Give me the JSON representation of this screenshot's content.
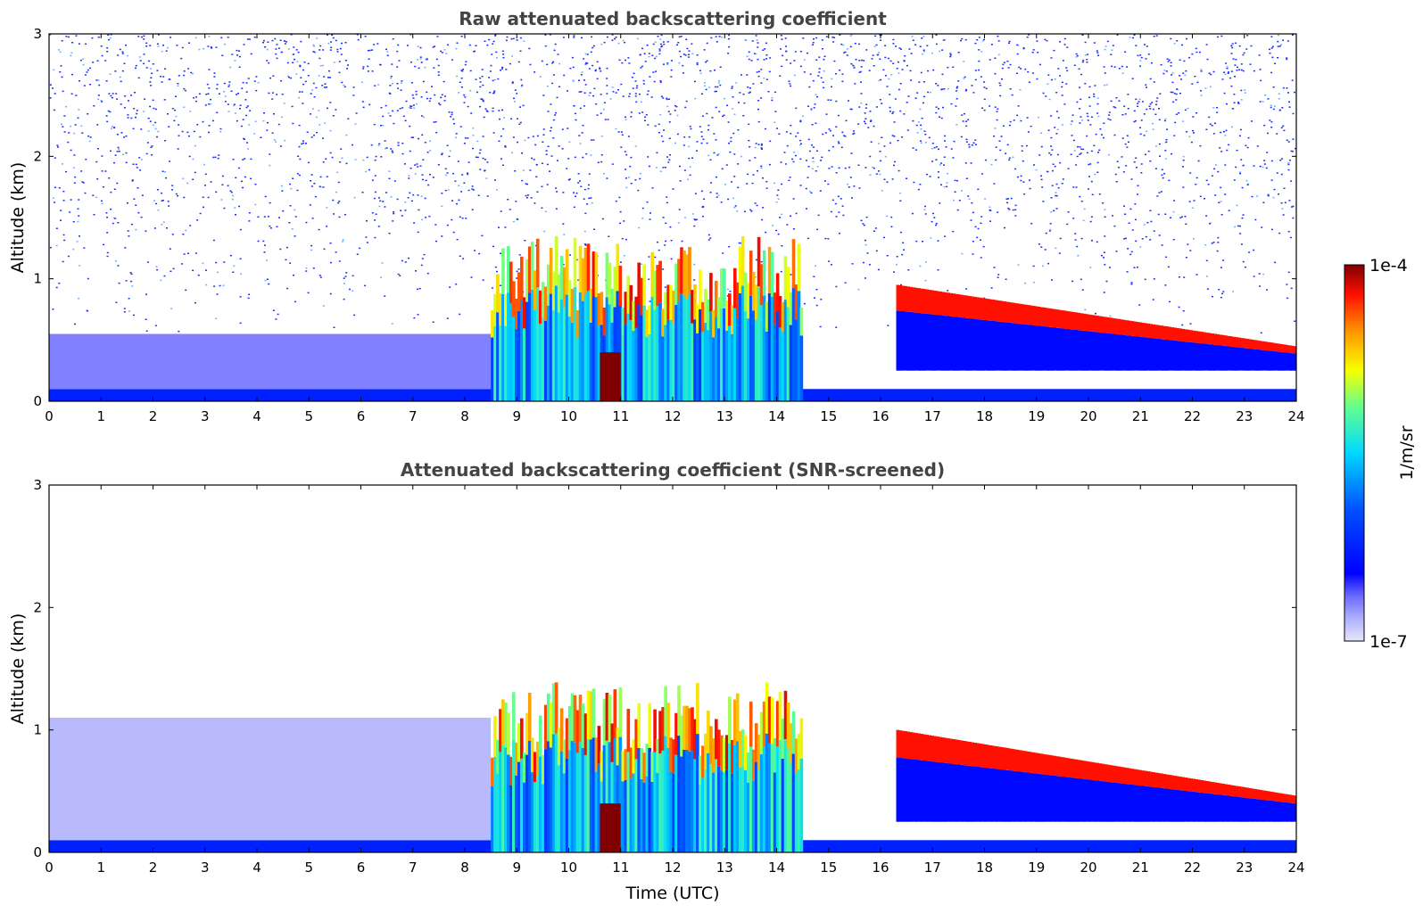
{
  "chart_data": [
    {
      "type": "heatmap",
      "title": "Raw attenuated backscattering coefficient",
      "xlabel": "",
      "ylabel": "Altitude (km)",
      "xlim": [
        0,
        24
      ],
      "ylim": [
        0,
        3
      ],
      "x_ticks": [
        "0",
        "1",
        "2",
        "3",
        "4",
        "5",
        "6",
        "7",
        "8",
        "9",
        "10",
        "11",
        "12",
        "13",
        "14",
        "15",
        "16",
        "17",
        "18",
        "19",
        "20",
        "21",
        "22",
        "23",
        "24"
      ],
      "y_ticks": [
        "0",
        "1",
        "2",
        "3"
      ],
      "features": [
        {
          "label": "noise",
          "x_range": [
            0,
            24
          ],
          "alt_range": [
            1.0,
            3.0
          ],
          "level": 0.2
        },
        {
          "label": "surface layer",
          "x_range": [
            0,
            24
          ],
          "alt_range": [
            0.0,
            0.1
          ],
          "level": 0.25
        },
        {
          "label": "boundary layer",
          "x_range": [
            0,
            8.5
          ],
          "alt_range": [
            0.1,
            0.55
          ],
          "level": 0.1
        },
        {
          "label": "convective cloud",
          "x_range": [
            8.5,
            14.5
          ],
          "alt_range": [
            0.0,
            1.35
          ],
          "level": 0.6
        },
        {
          "label": "dense core",
          "x_range": [
            10.6,
            11.0
          ],
          "alt_range": [
            0.0,
            0.4
          ],
          "level": 1.0
        },
        {
          "label": "stratiform layer",
          "x_range": [
            16.3,
            24
          ],
          "alt_range": [
            0.25,
            0.95
          ],
          "level": 0.9
        }
      ]
    },
    {
      "type": "heatmap",
      "title": "Attenuated backscattering coefficient (SNR-screened)",
      "xlabel": "Time (UTC)",
      "ylabel": "Altitude (km)",
      "xlim": [
        0,
        24
      ],
      "ylim": [
        0,
        3
      ],
      "x_ticks": [
        "0",
        "1",
        "2",
        "3",
        "4",
        "5",
        "6",
        "7",
        "8",
        "9",
        "10",
        "11",
        "12",
        "13",
        "14",
        "15",
        "16",
        "17",
        "18",
        "19",
        "20",
        "21",
        "22",
        "23",
        "24"
      ],
      "y_ticks": [
        "0",
        "1",
        "2",
        "3"
      ],
      "features": [
        {
          "label": "surface layer",
          "x_range": [
            0,
            24
          ],
          "alt_range": [
            0.0,
            0.1
          ],
          "level": 0.25
        },
        {
          "label": "boundary layer",
          "x_range": [
            0,
            8.5
          ],
          "alt_range": [
            0.1,
            1.1
          ],
          "level": 0.05
        },
        {
          "label": "convective cloud",
          "x_range": [
            8.5,
            14.5
          ],
          "alt_range": [
            0.0,
            1.4
          ],
          "level": 0.6
        },
        {
          "label": "dense core",
          "x_range": [
            10.6,
            11.0
          ],
          "alt_range": [
            0.0,
            0.4
          ],
          "level": 1.0
        },
        {
          "label": "stratiform layer",
          "x_range": [
            16.3,
            24
          ],
          "alt_range": [
            0.25,
            1.0
          ],
          "level": 0.9
        }
      ]
    }
  ],
  "colorbar": {
    "label": "1/m/sr",
    "max_label": "1e-4",
    "min_label": "1e-7",
    "range": [
      1e-07,
      0.0001
    ],
    "scale": "log"
  },
  "colors": {
    "title": "#444444",
    "noise": "#1a2cff",
    "background": "#ffffff"
  }
}
